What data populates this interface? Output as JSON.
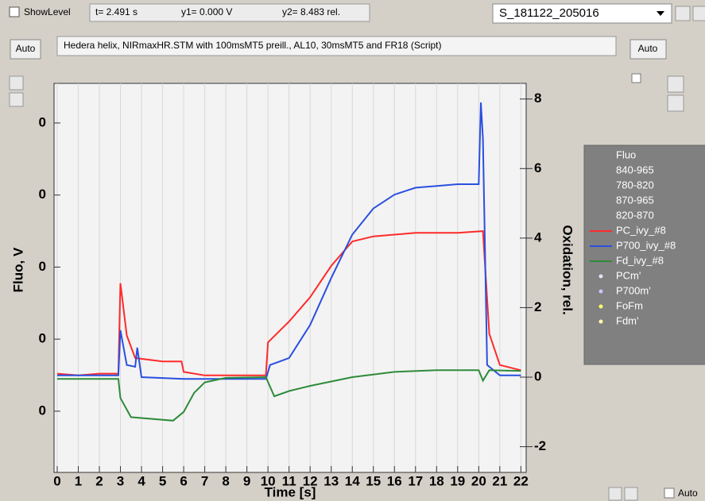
{
  "toolbar": {
    "show_level": "ShowLevel",
    "t": "t= 2.491 s",
    "y1": "y1= 0.000 V",
    "y2": "y2= 8.483 rel.",
    "record": "S_181122_205016",
    "auto_left": "Auto",
    "auto_right": "Auto",
    "auto_bottom": "Auto"
  },
  "chart_data": {
    "type": "line",
    "title": "Hedera helix, NIRmaxHR.STM with 100msMT5 preill., AL10, 30msMT5 and FR18 (Script)",
    "xlabel": "Time [s]",
    "ylabel": "Fluo, V",
    "y2label": "Oxidation, rel.",
    "xlim": [
      -0.15,
      22.25
    ],
    "xticks": [
      0,
      1,
      2,
      3,
      4,
      5,
      6,
      7,
      8,
      9,
      10,
      11,
      12,
      13,
      14,
      15,
      16,
      17,
      18,
      19,
      20,
      21,
      22
    ],
    "ylim": [
      -0.285,
      0.255
    ],
    "yticks": [
      {
        "value": 0.2,
        "label": "0"
      },
      {
        "value": 0.1,
        "label": "0"
      },
      {
        "value": 0,
        "label": "0"
      },
      {
        "value": -0.1,
        "label": "0"
      },
      {
        "value": -0.2,
        "label": "0"
      }
    ],
    "y2lim": [
      -2.74,
      8.45
    ],
    "y2ticks": [
      8,
      6,
      4,
      2,
      0,
      -2
    ],
    "grid": true,
    "legend_header": [
      "Fluo",
      "840-965",
      "780-820",
      "870-965",
      "820-870"
    ],
    "legend_points": [
      {
        "name": "PCm'",
        "color": "#e6e0ff"
      },
      {
        "name": "P700m'",
        "color": "#c8c8ff"
      },
      {
        "name": "FoFm",
        "color": "#ffff66"
      },
      {
        "name": "Fdm'",
        "color": "#ffffaa"
      }
    ],
    "series": [
      {
        "name": "PC_ivy_#8",
        "color": "#ff2a2a",
        "axis": "y2",
        "x": [
          0,
          1,
          2,
          2.9,
          3,
          3.3,
          3.7,
          5,
          5.9,
          6,
          7,
          8,
          9,
          9.9,
          10,
          11,
          12,
          13,
          14,
          15,
          16,
          17,
          18,
          19,
          20.2,
          20.5,
          21,
          22
        ],
        "values": [
          0.1,
          0.05,
          0.1,
          0.1,
          2.7,
          1.2,
          0.55,
          0.45,
          0.45,
          0.15,
          0.05,
          0.05,
          0.05,
          0.05,
          1.0,
          1.6,
          2.3,
          3.2,
          3.9,
          4.05,
          4.1,
          4.15,
          4.15,
          4.15,
          4.2,
          1.25,
          0.35,
          0.2
        ]
      },
      {
        "name": "P700_ivy_#8",
        "color": "#2a4fe0",
        "axis": "y2",
        "x": [
          0,
          1,
          2,
          2.9,
          3,
          3.3,
          3.7,
          3.8,
          4,
          6,
          8,
          9.9,
          10.1,
          11,
          12,
          13,
          14,
          15,
          16,
          17,
          18,
          19,
          20,
          20.1,
          20.2,
          20.4,
          21,
          22
        ],
        "values": [
          0.05,
          0.05,
          0.05,
          0.05,
          1.35,
          0.35,
          0.3,
          0.85,
          0,
          -0.05,
          -0.05,
          -0.05,
          0.35,
          0.55,
          1.5,
          2.85,
          4.1,
          4.85,
          5.25,
          5.45,
          5.5,
          5.55,
          5.55,
          7.9,
          6.85,
          0.35,
          0.05,
          0.05
        ]
      },
      {
        "name": "Fd_ivy_#8",
        "color": "#2e8b3a",
        "axis": "y2",
        "x": [
          0,
          2.9,
          3,
          3.5,
          5.5,
          6,
          6.5,
          7,
          8,
          9.9,
          10.3,
          11,
          12,
          14,
          16,
          18,
          20,
          20.2,
          20.5,
          22
        ],
        "values": [
          -0.05,
          -0.05,
          -0.6,
          -1.15,
          -1.25,
          -1.0,
          -0.45,
          -0.15,
          -0.02,
          0,
          -0.55,
          -0.4,
          -0.25,
          0,
          0.15,
          0.2,
          0.2,
          -0.1,
          0.2,
          0.18
        ]
      }
    ]
  }
}
